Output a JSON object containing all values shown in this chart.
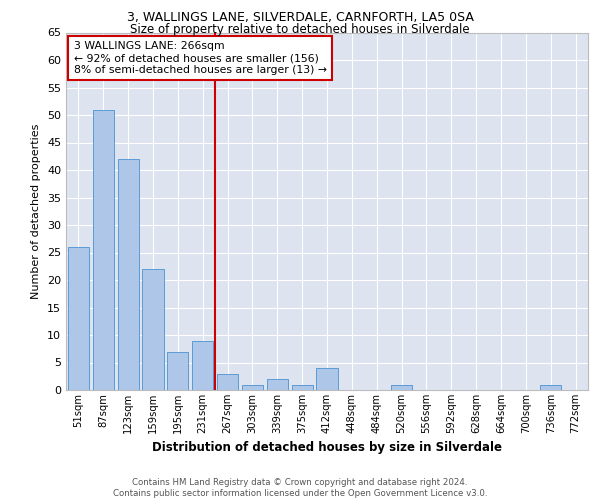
{
  "title1": "3, WALLINGS LANE, SILVERDALE, CARNFORTH, LA5 0SA",
  "title2": "Size of property relative to detached houses in Silverdale",
  "xlabel": "Distribution of detached houses by size in Silverdale",
  "ylabel": "Number of detached properties",
  "footnote": "Contains HM Land Registry data © Crown copyright and database right 2024.\nContains public sector information licensed under the Open Government Licence v3.0.",
  "bar_labels": [
    "51sqm",
    "87sqm",
    "123sqm",
    "159sqm",
    "195sqm",
    "231sqm",
    "267sqm",
    "303sqm",
    "339sqm",
    "375sqm",
    "412sqm",
    "448sqm",
    "484sqm",
    "520sqm",
    "556sqm",
    "592sqm",
    "628sqm",
    "664sqm",
    "700sqm",
    "736sqm",
    "772sqm"
  ],
  "bar_values": [
    26,
    51,
    42,
    22,
    7,
    9,
    3,
    1,
    2,
    1,
    4,
    0,
    0,
    1,
    0,
    0,
    0,
    0,
    0,
    1,
    0
  ],
  "bar_color": "#aec6e8",
  "bar_edge_color": "#5b9bd5",
  "vline_bar_idx": 6.0,
  "annotation_title": "3 WALLINGS LANE: 266sqm",
  "annotation_line1": "← 92% of detached houses are smaller (156)",
  "annotation_line2": "8% of semi-detached houses are larger (13) →",
  "vline_color": "#cc0000",
  "annotation_box_color": "#cc0000",
  "background_color": "#dde4f0",
  "ylim": [
    0,
    65
  ],
  "yticks": [
    0,
    5,
    10,
    15,
    20,
    25,
    30,
    35,
    40,
    45,
    50,
    55,
    60,
    65
  ]
}
